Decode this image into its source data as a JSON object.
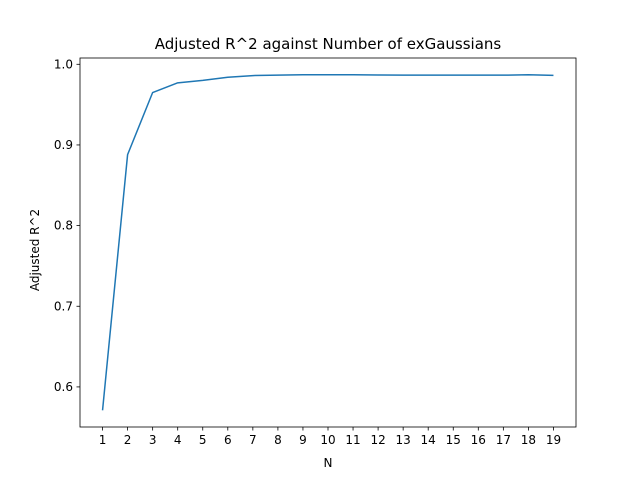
{
  "chart_data": {
    "type": "line",
    "title": "Adjusted R^2 against Number of exGaussians",
    "xlabel": "N",
    "ylabel": "Adjusted R^2",
    "x": [
      1,
      2,
      3,
      4,
      5,
      6,
      7,
      8,
      9,
      10,
      11,
      12,
      13,
      14,
      15,
      16,
      17,
      18,
      19
    ],
    "series": [
      {
        "values": [
          0.571,
          0.888,
          0.965,
          0.977,
          0.98,
          0.984,
          0.986,
          0.9865,
          0.987,
          0.987,
          0.987,
          0.9868,
          0.9866,
          0.9866,
          0.9865,
          0.9865,
          0.9865,
          0.987,
          0.9862
        ],
        "color": "#1f77b4"
      }
    ],
    "xticks": [
      "1",
      "2",
      "3",
      "4",
      "5",
      "6",
      "7",
      "8",
      "9",
      "10",
      "11",
      "12",
      "13",
      "14",
      "15",
      "16",
      "17",
      "18",
      "19"
    ],
    "yticks": [
      "0.6",
      "0.7",
      "0.8",
      "0.9",
      "1.0"
    ],
    "ytick_values": [
      0.6,
      0.7,
      0.8,
      0.9,
      1.0
    ],
    "xlim": [
      0.1,
      19.9
    ],
    "ylim": [
      0.5503,
      1.0078
    ],
    "grid": false
  }
}
